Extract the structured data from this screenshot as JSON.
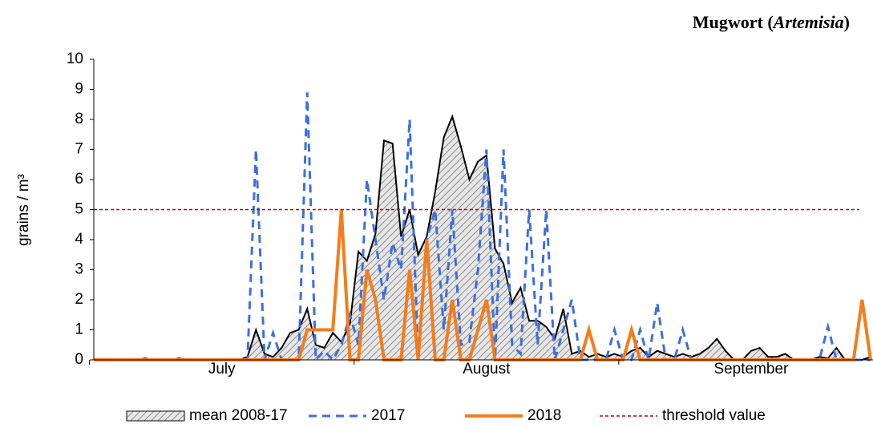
{
  "chart_data": {
    "type": "line",
    "title": [
      "Mugwort (",
      "Artemisia",
      ")"
    ],
    "ylabel": "grains / m³",
    "categories": [
      null,
      null,
      null,
      null,
      null,
      null,
      null,
      null,
      null,
      null,
      null,
      null,
      null,
      null,
      null,
      "July",
      null,
      null,
      null,
      null,
      null,
      null,
      null,
      null,
      null,
      null,
      null,
      null,
      null,
      null,
      null,
      null,
      null,
      null,
      null,
      null,
      null,
      null,
      null,
      null,
      null,
      null,
      null,
      null,
      null,
      null,
      "August",
      null,
      null,
      null,
      null,
      null,
      null,
      null,
      null,
      null,
      null,
      null,
      null,
      null,
      null,
      null,
      null,
      null,
      null,
      null,
      null,
      null,
      null,
      null,
      null,
      null,
      null,
      null,
      null,
      null,
      null,
      "September",
      null,
      null,
      null,
      null,
      null,
      null,
      null,
      null,
      null,
      null,
      null,
      null,
      null,
      null
    ],
    "ylim": [
      0,
      10
    ],
    "yticks": [
      0,
      1,
      2,
      3,
      4,
      5,
      6,
      7,
      8,
      9,
      10
    ],
    "series": [
      {
        "name": "mean 2008-17",
        "style": "area",
        "color": "#000000",
        "values": [
          0,
          0,
          0,
          0,
          0,
          0,
          0.05,
          0,
          0,
          0,
          0.05,
          0,
          0,
          0,
          0,
          0,
          0,
          0,
          0.1,
          1.0,
          0.2,
          0.1,
          0.4,
          0.9,
          1.0,
          1.7,
          0.5,
          0.4,
          0.9,
          0.6,
          1.2,
          3.6,
          3.3,
          4.2,
          7.3,
          7.2,
          4.1,
          5.0,
          3.5,
          4.1,
          5.6,
          7.4,
          8.1,
          7.1,
          6.0,
          6.6,
          6.8,
          3.7,
          3.2,
          1.9,
          2.4,
          1.3,
          1.3,
          1.1,
          0.7,
          1.7,
          0.2,
          0.3,
          0.1,
          0.2,
          0.1,
          0.2,
          0.1,
          0.3,
          0.4,
          0.1,
          0.3,
          0.2,
          0.1,
          0.2,
          0.1,
          0.2,
          0.4,
          0.7,
          0.3,
          0,
          0,
          0.3,
          0.4,
          0.1,
          0.1,
          0.2,
          0,
          0,
          0,
          0.1,
          0.05,
          0.4,
          0,
          0,
          0,
          0.1
        ]
      },
      {
        "name": "2017",
        "style": "dashed",
        "color": "#3b6fe0",
        "values": [
          0,
          0,
          0,
          0,
          0,
          0,
          0,
          0,
          0,
          0,
          0,
          0,
          0,
          0,
          0,
          0,
          0,
          0,
          0,
          7.0,
          0,
          0.9,
          0,
          0,
          0,
          8.9,
          0,
          0.3,
          0,
          0.5,
          1.5,
          0.5,
          6.0,
          4.0,
          2.0,
          3.9,
          3.0,
          8.0,
          0,
          4.0,
          5.0,
          1.0,
          5.0,
          0.5,
          0.6,
          3.0,
          7.0,
          0,
          7.0,
          0.5,
          0.2,
          5.0,
          0.5,
          5.0,
          0,
          1.0,
          2.0,
          0,
          0,
          0,
          0,
          1.0,
          0,
          0,
          1.0,
          0,
          1.9,
          0,
          0,
          1.0,
          0,
          0,
          0,
          0,
          0,
          0,
          0,
          0,
          0,
          0,
          0,
          0,
          0,
          0,
          0,
          0,
          1.1,
          0,
          0,
          0,
          0,
          0
        ]
      },
      {
        "name": "2018",
        "style": "solid",
        "color": "#f57c1a",
        "values": [
          0,
          0,
          0,
          0,
          0,
          0,
          0,
          0,
          0,
          0,
          0,
          0,
          0,
          0,
          0,
          0,
          0,
          0,
          0,
          0,
          0,
          0,
          0,
          0,
          0,
          1.0,
          1.0,
          1.0,
          1.0,
          5.0,
          0,
          0,
          3.0,
          2.0,
          0,
          0,
          0,
          3.0,
          0,
          4.0,
          0,
          0,
          2.0,
          0,
          0,
          1.0,
          2.0,
          0,
          0,
          0,
          0,
          0,
          0,
          0,
          0,
          0,
          0,
          0,
          1.0,
          0,
          0,
          0,
          0,
          1.0,
          0,
          0,
          0,
          0,
          0,
          0,
          0,
          0,
          0,
          0,
          0,
          0,
          0,
          0,
          0,
          0,
          0,
          0,
          0,
          0,
          0,
          0,
          0,
          0,
          0,
          0,
          2.0,
          0
        ]
      }
    ],
    "threshold": {
      "name": "threshold value",
      "value": 5,
      "color": "#c00000"
    }
  }
}
